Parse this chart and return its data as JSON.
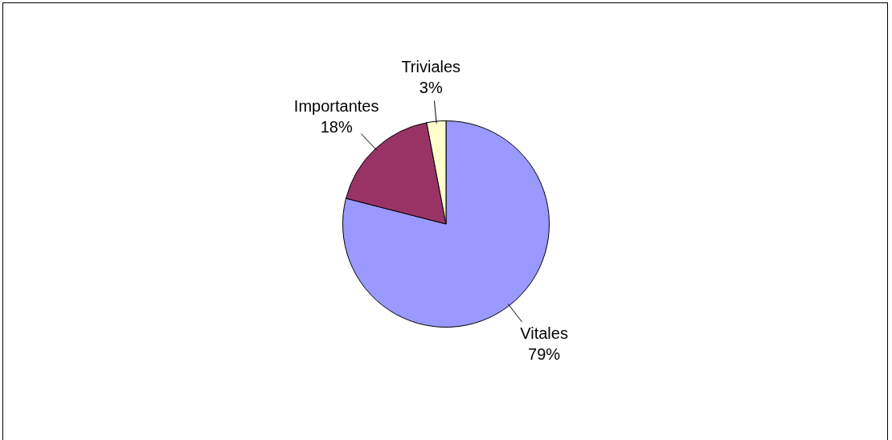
{
  "chart_data": {
    "type": "pie",
    "categories": [
      "Vitales",
      "Importantes",
      "Triviales"
    ],
    "values": [
      79,
      18,
      3
    ],
    "colors": [
      "#9999ff",
      "#993366",
      "#ffffcc"
    ],
    "value_labels": [
      "79%",
      "18%",
      "3%"
    ],
    "legend": false
  }
}
